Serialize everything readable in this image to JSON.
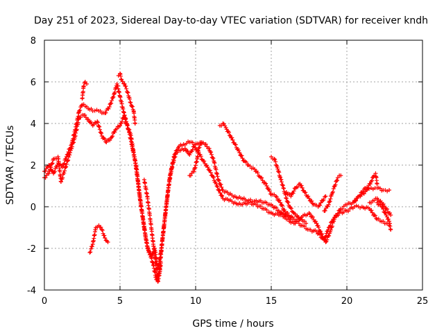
{
  "chart_data": {
    "type": "scatter",
    "title": "Day 251 of 2023, Sidereal Day-to-day VTEC variation (SDTVAR) for receiver kndh",
    "xlabel": "GPS time / hours",
    "ylabel": "SDTVAR / TECUs",
    "xlim": [
      0,
      25
    ],
    "ylim": [
      -4,
      8
    ],
    "x_ticks": [
      0,
      5,
      10,
      15,
      20,
      25
    ],
    "y_ticks": [
      -4,
      -2,
      0,
      2,
      4,
      6,
      8
    ],
    "grid": true,
    "marker": "plus",
    "color": "#ff0000",
    "series": [
      {
        "name": "main-trace-a",
        "points": [
          [
            0,
            1.7
          ],
          [
            0.3,
            2.0
          ],
          [
            0.6,
            1.6
          ],
          [
            0.9,
            2.1
          ],
          [
            1.2,
            1.9
          ],
          [
            1.5,
            2.5
          ],
          [
            1.8,
            3.0
          ],
          [
            2.0,
            3.6
          ],
          [
            2.3,
            4.6
          ],
          [
            2.5,
            4.9
          ],
          [
            2.8,
            4.8
          ],
          [
            3.2,
            4.6
          ],
          [
            3.6,
            4.6
          ],
          [
            4.0,
            4.5
          ],
          [
            4.3,
            4.8
          ],
          [
            4.6,
            5.4
          ],
          [
            4.8,
            5.9
          ],
          [
            5.0,
            5.3
          ],
          [
            5.2,
            4.7
          ],
          [
            5.4,
            4.0
          ],
          [
            5.7,
            3.5
          ],
          [
            5.9,
            2.6
          ],
          [
            6.1,
            1.8
          ],
          [
            6.3,
            0.5
          ],
          [
            6.5,
            -0.5
          ],
          [
            6.7,
            -1.5
          ],
          [
            6.9,
            -2.2
          ],
          [
            7.1,
            -2.4
          ],
          [
            7.3,
            -2.0
          ],
          [
            7.5,
            -3.0
          ],
          [
            7.7,
            -2.2
          ],
          [
            7.9,
            -1.0
          ],
          [
            8.1,
            0.3
          ],
          [
            8.3,
            1.5
          ],
          [
            8.6,
            2.5
          ],
          [
            8.9,
            2.9
          ],
          [
            9.2,
            3.0
          ],
          [
            9.6,
            3.1
          ],
          [
            10.0,
            3.0
          ],
          [
            10.3,
            3.1
          ],
          [
            10.6,
            3.0
          ],
          [
            10.9,
            2.8
          ],
          [
            11.2,
            2.2
          ],
          [
            11.5,
            1.3
          ],
          [
            11.8,
            0.8
          ],
          [
            12.2,
            0.6
          ],
          [
            12.6,
            0.5
          ],
          [
            13.0,
            0.4
          ],
          [
            13.5,
            0.3
          ],
          [
            14.0,
            0.3
          ],
          [
            14.5,
            0.2
          ],
          [
            15.0,
            0.1
          ],
          [
            15.5,
            -0.2
          ],
          [
            16.0,
            -0.6
          ],
          [
            16.5,
            -0.8
          ],
          [
            17.0,
            -0.5
          ],
          [
            17.5,
            -0.3
          ],
          [
            18.0,
            -0.8
          ],
          [
            18.3,
            -1.3
          ],
          [
            18.6,
            -1.7
          ],
          [
            18.9,
            -1.2
          ],
          [
            19.2,
            -0.5
          ],
          [
            19.6,
            -0.1
          ],
          [
            20.0,
            0.1
          ],
          [
            20.4,
            0.2
          ],
          [
            20.8,
            0.5
          ],
          [
            21.2,
            0.9
          ],
          [
            21.6,
            0.9
          ],
          [
            22.0,
            0.9
          ],
          [
            22.4,
            0.8
          ],
          [
            22.8,
            0.8
          ]
        ]
      },
      {
        "name": "main-trace-b",
        "points": [
          [
            0,
            1.4
          ],
          [
            0.3,
            1.6
          ],
          [
            0.6,
            2.3
          ],
          [
            0.9,
            2.4
          ],
          [
            1.1,
            1.2
          ],
          [
            1.4,
            1.9
          ],
          [
            1.7,
            2.6
          ],
          [
            2.0,
            3.3
          ],
          [
            2.3,
            4.3
          ],
          [
            2.6,
            4.4
          ],
          [
            2.9,
            4.2
          ],
          [
            3.2,
            3.9
          ],
          [
            3.5,
            4.1
          ],
          [
            3.8,
            3.4
          ],
          [
            4.1,
            3.1
          ],
          [
            4.4,
            3.3
          ],
          [
            4.7,
            3.7
          ],
          [
            5.0,
            3.9
          ],
          [
            5.3,
            4.4
          ],
          [
            5.6,
            3.6
          ],
          [
            5.8,
            2.9
          ],
          [
            6.0,
            2.2
          ],
          [
            6.2,
            1.1
          ],
          [
            6.4,
            0
          ],
          [
            6.6,
            -1.0
          ],
          [
            6.8,
            -1.9
          ],
          [
            7.0,
            -2.3
          ],
          [
            7.2,
            -2.8
          ],
          [
            7.4,
            -3.5
          ],
          [
            7.6,
            -3.2
          ],
          [
            7.8,
            -1.6
          ],
          [
            8.0,
            -0.3
          ],
          [
            8.2,
            0.9
          ],
          [
            8.4,
            1.8
          ],
          [
            8.7,
            2.6
          ],
          [
            9.0,
            2.7
          ],
          [
            9.3,
            2.8
          ],
          [
            9.6,
            2.5
          ],
          [
            9.9,
            2.9
          ],
          [
            10.2,
            2.6
          ],
          [
            10.5,
            2.2
          ],
          [
            10.8,
            1.9
          ],
          [
            11.1,
            1.5
          ],
          [
            11.4,
            1.0
          ],
          [
            11.8,
            0.4
          ],
          [
            12.2,
            0.3
          ],
          [
            12.6,
            0.2
          ],
          [
            13.0,
            0.1
          ],
          [
            13.5,
            0.2
          ],
          [
            14.0,
            0.1
          ],
          [
            14.5,
            -0.1
          ],
          [
            15.0,
            -0.3
          ],
          [
            15.5,
            -0.4
          ],
          [
            16.0,
            -0.3
          ],
          [
            16.5,
            -0.6
          ],
          [
            17.0,
            -0.9
          ],
          [
            17.5,
            -1.1
          ],
          [
            18.0,
            -1.2
          ],
          [
            18.5,
            -1.6
          ],
          [
            18.8,
            -1.0
          ],
          [
            19.1,
            -0.6
          ],
          [
            19.5,
            -0.3
          ],
          [
            20.0,
            -0.2
          ],
          [
            20.5,
            0
          ],
          [
            21.0,
            0
          ],
          [
            21.5,
            -0.1
          ],
          [
            22.0,
            -0.6
          ],
          [
            22.4,
            -0.7
          ],
          [
            22.8,
            -0.9
          ]
        ]
      },
      {
        "name": "upper-spike",
        "points": [
          [
            2.5,
            5.2
          ],
          [
            2.6,
            5.8
          ],
          [
            2.7,
            6.0
          ],
          [
            2.8,
            5.9
          ]
        ]
      },
      {
        "name": "peak-spike",
        "points": [
          [
            4.9,
            6.3
          ],
          [
            5.0,
            6.4
          ],
          [
            5.1,
            6.1
          ],
          [
            5.3,
            5.9
          ],
          [
            5.5,
            5.5
          ],
          [
            5.7,
            5.0
          ],
          [
            5.9,
            4.6
          ],
          [
            6.0,
            4.0
          ]
        ]
      },
      {
        "name": "low-fragment",
        "points": [
          [
            3.0,
            -2.2
          ],
          [
            3.2,
            -1.8
          ],
          [
            3.4,
            -1.0
          ],
          [
            3.6,
            -0.9
          ],
          [
            3.8,
            -1.1
          ],
          [
            4.0,
            -1.5
          ],
          [
            4.2,
            -1.7
          ]
        ]
      },
      {
        "name": "deep-spike",
        "points": [
          [
            6.6,
            1.3
          ],
          [
            6.8,
            0.5
          ],
          [
            7.0,
            -0.6
          ],
          [
            7.2,
            -1.8
          ],
          [
            7.4,
            -3.0
          ],
          [
            7.5,
            -3.6
          ],
          [
            7.6,
            -3.3
          ],
          [
            7.7,
            -2.7
          ]
        ]
      },
      {
        "name": "hump-12h",
        "points": [
          [
            11.6,
            3.9
          ],
          [
            11.8,
            4.0
          ],
          [
            12.0,
            3.8
          ],
          [
            12.3,
            3.4
          ],
          [
            12.6,
            3.0
          ],
          [
            12.9,
            2.6
          ],
          [
            13.2,
            2.2
          ],
          [
            13.5,
            2.0
          ],
          [
            13.9,
            1.8
          ],
          [
            14.3,
            1.4
          ],
          [
            14.7,
            1.0
          ],
          [
            15.0,
            0.6
          ],
          [
            15.3,
            0.5
          ],
          [
            15.6,
            0.2
          ],
          [
            16.0,
            -0.4
          ],
          [
            16.3,
            -0.6
          ]
        ]
      },
      {
        "name": "hump-15h",
        "points": [
          [
            15.0,
            2.4
          ],
          [
            15.2,
            2.3
          ],
          [
            15.4,
            1.9
          ],
          [
            15.6,
            1.4
          ],
          [
            15.8,
            0.9
          ],
          [
            16.0,
            0.4
          ],
          [
            16.2,
            0
          ],
          [
            16.5,
            -0.3
          ],
          [
            16.8,
            -0.5
          ],
          [
            17.1,
            -0.7
          ],
          [
            17.3,
            -0.8
          ]
        ]
      },
      {
        "name": "tail-17h",
        "points": [
          [
            16.0,
            0.7
          ],
          [
            16.3,
            0.5
          ],
          [
            16.6,
            0.9
          ],
          [
            16.9,
            1.1
          ],
          [
            17.2,
            0.7
          ],
          [
            17.5,
            0.4
          ],
          [
            17.8,
            0.1
          ],
          [
            18.1,
            0.0
          ],
          [
            18.4,
            0.3
          ],
          [
            18.6,
            0.5
          ]
        ]
      },
      {
        "name": "tail-19h",
        "points": [
          [
            18.5,
            -0.2
          ],
          [
            18.8,
            0.1
          ],
          [
            19.0,
            0.6
          ],
          [
            19.2,
            1.0
          ],
          [
            19.4,
            1.4
          ],
          [
            19.6,
            1.5
          ]
        ]
      },
      {
        "name": "tail-21h",
        "points": [
          [
            20.5,
            0.3
          ],
          [
            20.9,
            0.5
          ],
          [
            21.3,
            0.8
          ],
          [
            21.6,
            1.2
          ],
          [
            21.8,
            1.5
          ],
          [
            21.9,
            1.6
          ],
          [
            22.0,
            1.1
          ]
        ]
      },
      {
        "name": "tail-22h",
        "points": [
          [
            22.0,
            0.2
          ],
          [
            22.3,
            0.0
          ],
          [
            22.6,
            -0.4
          ],
          [
            22.8,
            -0.7
          ],
          [
            22.9,
            -1.1
          ]
        ]
      },
      {
        "name": "tail-23h",
        "points": [
          [
            21.5,
            0.2
          ],
          [
            21.8,
            0.3
          ],
          [
            22.0,
            0.4
          ],
          [
            22.3,
            0.2
          ],
          [
            22.6,
            -0.1
          ],
          [
            22.9,
            -0.4
          ]
        ]
      },
      {
        "name": "spike-10h",
        "points": [
          [
            9.6,
            1.5
          ],
          [
            9.9,
            1.7
          ],
          [
            10.1,
            2.3
          ],
          [
            10.2,
            2.8
          ],
          [
            10.4,
            3.1
          ]
        ]
      }
    ]
  }
}
